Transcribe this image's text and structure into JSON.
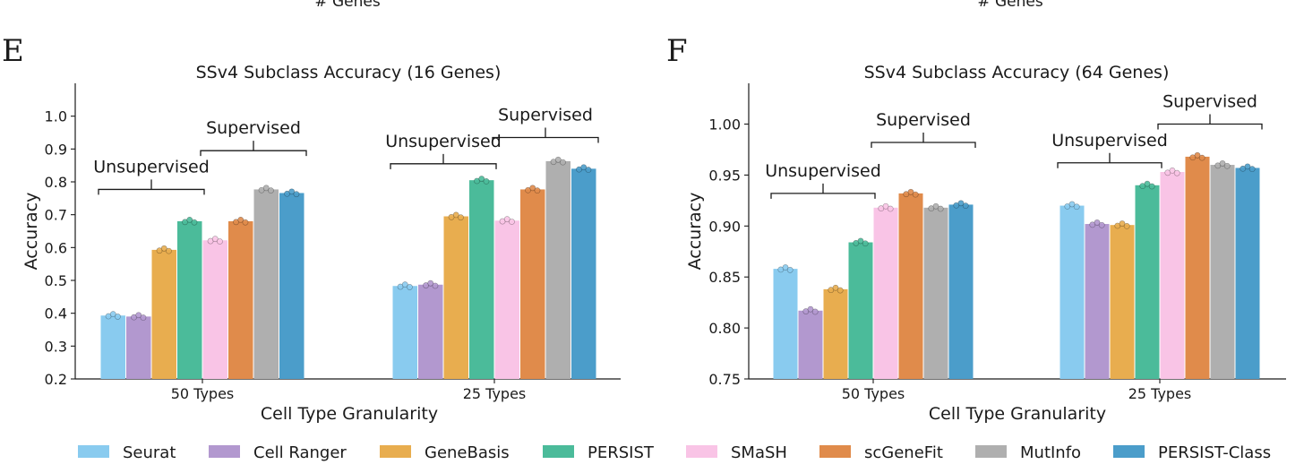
{
  "top_cut_labels": [
    "# Genes",
    "# Genes"
  ],
  "colors": {
    "Seurat": "#89cbef",
    "Cell Ranger": "#b298cf",
    "GeneBasis": "#e8ad4f",
    "PERSIST": "#4bbb9a",
    "SMaSH": "#f9c4e6",
    "scGeneFit": "#e08b4b",
    "MutInfo": "#afafaf",
    "PERSIST-Class": "#4b9dca"
  },
  "legend": [
    "Seurat",
    "Cell Ranger",
    "GeneBasis",
    "PERSIST",
    "SMaSH",
    "scGeneFit",
    "MutInfo",
    "PERSIST-Class"
  ],
  "chart_data": [
    {
      "panel": "E",
      "type": "bar",
      "title": "SSv4 Subclass Accuracy (16 Genes)",
      "xlabel": "Cell Type Granularity",
      "ylabel": "Accuracy",
      "ylim": [
        0.2,
        1.1
      ],
      "yticks": [
        "0.2",
        "0.3",
        "0.4",
        "0.5",
        "0.6",
        "0.7",
        "0.8",
        "0.9",
        "1.0"
      ],
      "categories": [
        "50 Types",
        "25 Types"
      ],
      "series": [
        {
          "name": "Seurat",
          "values": [
            0.393,
            0.483
          ]
        },
        {
          "name": "Cell Ranger",
          "values": [
            0.39,
            0.487
          ]
        },
        {
          "name": "GeneBasis",
          "values": [
            0.593,
            0.695
          ]
        },
        {
          "name": "PERSIST",
          "values": [
            0.68,
            0.805
          ]
        },
        {
          "name": "SMaSH",
          "values": [
            0.622,
            0.682
          ]
        },
        {
          "name": "scGeneFit",
          "values": [
            0.68,
            0.777
          ]
        },
        {
          "name": "MutInfo",
          "values": [
            0.777,
            0.863
          ]
        },
        {
          "name": "PERSIST-Class",
          "values": [
            0.766,
            0.84
          ]
        }
      ],
      "annotations": [
        {
          "text": "Unsupervised",
          "category": 0,
          "from": 0,
          "to": 3,
          "level": 0.777
        },
        {
          "text": "Supervised",
          "category": 0,
          "from": 4,
          "to": 7,
          "level": 0.895
        },
        {
          "text": "Unsupervised",
          "category": 1,
          "from": 0,
          "to": 3,
          "level": 0.855
        },
        {
          "text": "Supervised",
          "category": 1,
          "from": 4,
          "to": 7,
          "level": 0.935
        }
      ]
    },
    {
      "panel": "F",
      "type": "bar",
      "title": "SSv4 Subclass Accuracy (64 Genes)",
      "xlabel": "Cell Type Granularity",
      "ylabel": "Accuracy",
      "ylim": [
        0.75,
        1.04
      ],
      "yticks": [
        "0.75",
        "0.80",
        "0.85",
        "0.90",
        "0.95",
        "1.00"
      ],
      "categories": [
        "50 Types",
        "25 Types"
      ],
      "series": [
        {
          "name": "Seurat",
          "values": [
            0.858,
            0.92
          ]
        },
        {
          "name": "Cell Ranger",
          "values": [
            0.817,
            0.902
          ]
        },
        {
          "name": "GeneBasis",
          "values": [
            0.838,
            0.901
          ]
        },
        {
          "name": "PERSIST",
          "values": [
            0.884,
            0.94
          ]
        },
        {
          "name": "SMaSH",
          "values": [
            0.918,
            0.953
          ]
        },
        {
          "name": "scGeneFit",
          "values": [
            0.932,
            0.968
          ]
        },
        {
          "name": "MutInfo",
          "values": [
            0.918,
            0.96
          ]
        },
        {
          "name": "PERSIST-Class",
          "values": [
            0.921,
            0.957
          ]
        }
      ],
      "annotations": [
        {
          "text": "Unsupervised",
          "category": 0,
          "from": 0,
          "to": 3,
          "level": 0.932
        },
        {
          "text": "Supervised",
          "category": 0,
          "from": 4,
          "to": 7,
          "level": 0.982
        },
        {
          "text": "Unsupervised",
          "category": 1,
          "from": 0,
          "to": 3,
          "level": 0.962
        },
        {
          "text": "Supervised",
          "category": 1,
          "from": 4,
          "to": 7,
          "level": 1.0
        }
      ]
    }
  ]
}
